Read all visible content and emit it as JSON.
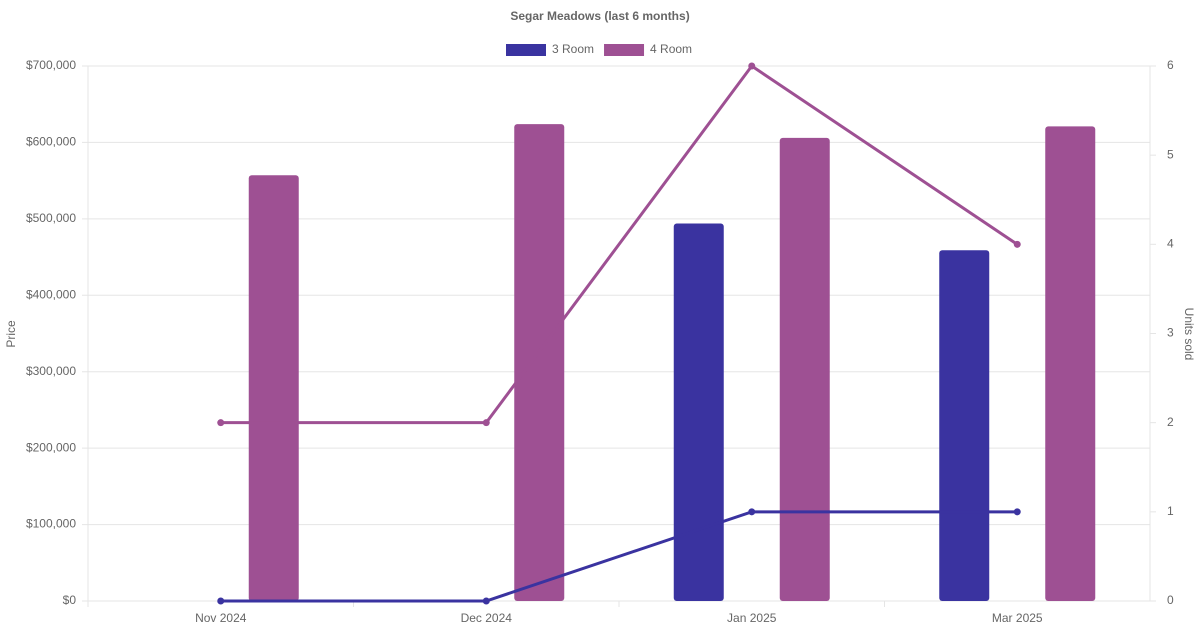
{
  "chart_data": {
    "type": "bar-line",
    "title": "Segar Meadows (last 6 months)",
    "categories": [
      "Nov 2024",
      "Dec 2024",
      "Jan 2025",
      "Mar 2025"
    ],
    "ylabel": "Price",
    "y2label": "Units sold",
    "ylim": [
      0,
      700000
    ],
    "yticks": [
      {
        "value": 0,
        "label": "$0"
      },
      {
        "value": 100000,
        "label": "$100,000"
      },
      {
        "value": 200000,
        "label": "$200,000"
      },
      {
        "value": 300000,
        "label": "$300,000"
      },
      {
        "value": 400000,
        "label": "$400,000"
      },
      {
        "value": 500000,
        "label": "$500,000"
      },
      {
        "value": 600000,
        "label": "$600,000"
      },
      {
        "value": 700000,
        "label": "$700,000"
      }
    ],
    "y2lim": [
      0,
      6
    ],
    "y2ticks": [
      0,
      1,
      2,
      3,
      4,
      5,
      6
    ],
    "grid": true,
    "legend": "top",
    "series": [
      {
        "name": "3 Room",
        "color": "#3a33a0",
        "values": [
          null,
          null,
          494000,
          459000
        ],
        "units": [
          0,
          0,
          1,
          1
        ]
      },
      {
        "name": "4 Room",
        "color": "#9e5093",
        "values": [
          557000,
          624000,
          606000,
          621000
        ],
        "units": [
          2,
          2,
          6,
          4
        ]
      }
    ]
  }
}
